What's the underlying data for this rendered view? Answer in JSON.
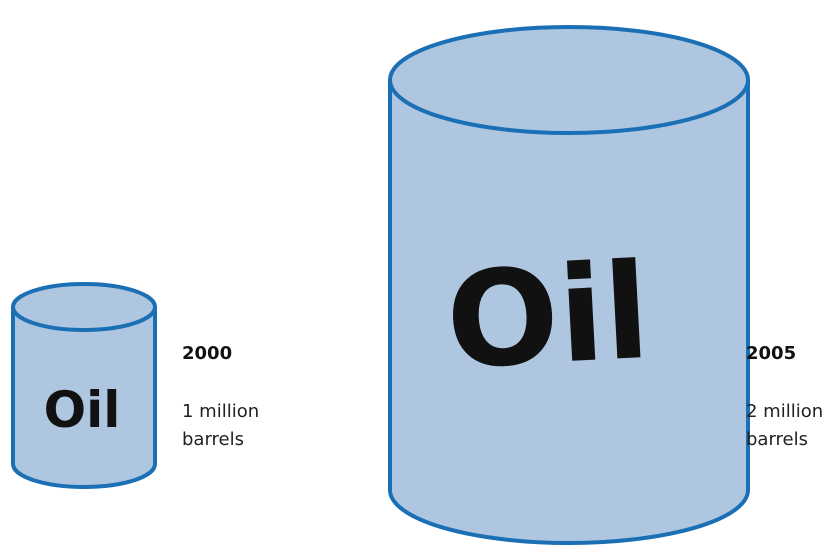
{
  "barrels": [
    {
      "label": "Oil",
      "year": "2000",
      "lines": [
        "1 million",
        "barrels"
      ]
    },
    {
      "label": "Oil",
      "year": "2005",
      "lines": [
        "2 million",
        "barrels"
      ]
    }
  ]
}
